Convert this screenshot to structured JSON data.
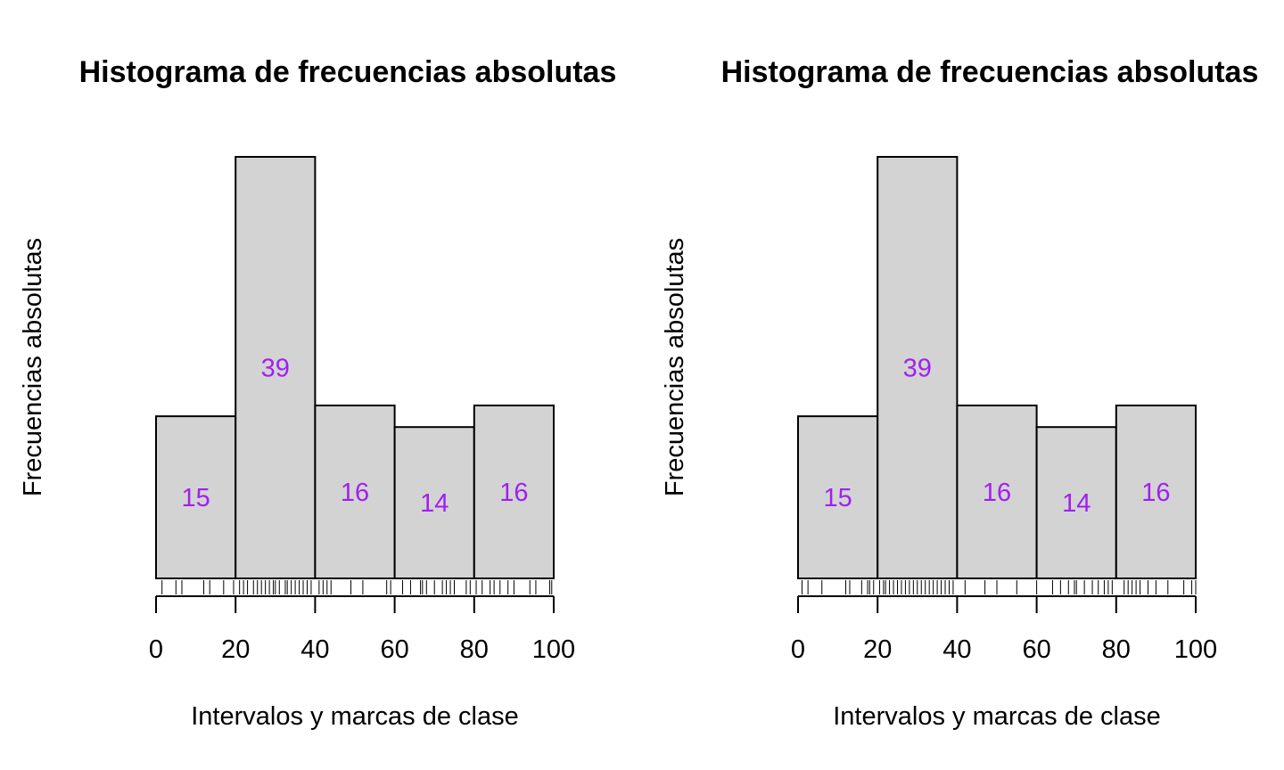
{
  "chart_data": [
    {
      "type": "bar",
      "title": "Histograma de frecuencias absolutas",
      "xlabel": "Intervalos y marcas de clase",
      "ylabel": "Frecuencias absolutas",
      "bins": [
        [
          0,
          20
        ],
        [
          20,
          40
        ],
        [
          40,
          60
        ],
        [
          60,
          80
        ],
        [
          80,
          100
        ]
      ],
      "values": [
        15,
        39,
        16,
        14,
        16
      ],
      "value_labels": [
        "15",
        "39",
        "16",
        "14",
        "16"
      ],
      "label_positions_y": [
        7.5,
        19.5,
        8,
        7,
        8
      ],
      "x_ticks": [
        "0",
        "20",
        "40",
        "60",
        "80",
        "100"
      ],
      "xlim": [
        0,
        100
      ],
      "ylim": [
        0,
        39
      ],
      "y_axis_shown": false,
      "bar_color": "#d3d3d3",
      "label_color": "#a020f0",
      "rug": [
        1.5,
        5,
        6.5,
        12,
        13.5,
        17,
        19.5,
        21,
        22,
        23,
        24.5,
        25.5,
        26.5,
        27.5,
        28.5,
        29.5,
        30,
        31,
        32.5,
        33,
        34,
        35,
        36,
        37,
        38,
        39,
        41,
        42,
        43,
        44,
        49,
        52,
        58,
        59,
        62,
        64,
        66.5,
        67,
        68,
        70,
        72,
        73,
        74,
        75,
        78,
        79,
        80.5,
        82,
        84,
        85,
        86.5,
        88.5,
        90,
        94,
        95.5,
        99,
        99.5
      ]
    },
    {
      "type": "bar",
      "title": "Histograma de frecuencias absolutas",
      "xlabel": "Intervalos y marcas de clase",
      "ylabel": "Frecuencias absolutas",
      "bins": [
        [
          0,
          20
        ],
        [
          20,
          40
        ],
        [
          40,
          60
        ],
        [
          60,
          80
        ],
        [
          80,
          100
        ]
      ],
      "values": [
        15,
        39,
        16,
        14,
        16
      ],
      "value_labels": [
        "15",
        "39",
        "16",
        "14",
        "16"
      ],
      "label_positions_y": [
        7.5,
        19.5,
        8,
        7,
        8
      ],
      "x_ticks": [
        "0",
        "20",
        "40",
        "60",
        "80",
        "100"
      ],
      "xlim": [
        0,
        100
      ],
      "ylim": [
        0,
        39
      ],
      "y_axis_shown": false,
      "bar_color": "#d3d3d3",
      "label_color": "#a020f0",
      "rug": [
        1,
        2.5,
        6,
        12,
        13,
        16,
        17.5,
        18,
        19,
        20.5,
        21.5,
        22,
        23,
        24,
        25,
        26,
        27,
        28,
        29,
        30,
        31,
        32,
        33,
        34,
        35,
        36,
        37,
        38,
        39,
        42,
        47,
        50,
        55,
        60,
        64,
        66,
        68,
        69.5,
        70,
        72,
        74,
        75.5,
        77,
        78,
        79,
        82,
        83,
        84,
        85,
        86,
        88,
        90,
        93,
        97,
        99,
        100
      ]
    }
  ]
}
